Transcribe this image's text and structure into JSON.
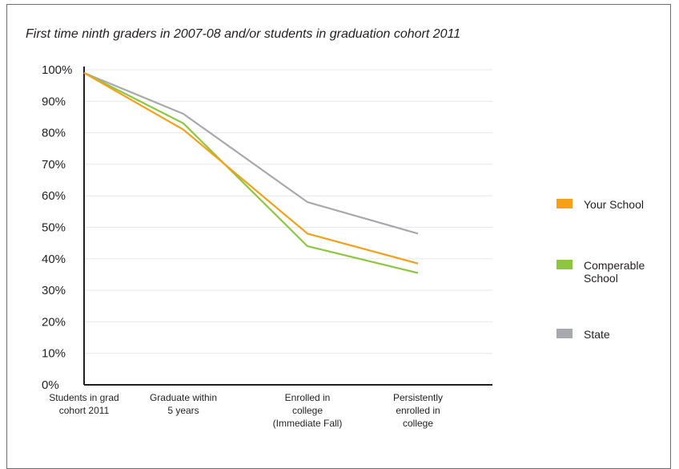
{
  "chart_data": {
    "type": "line",
    "title": "First time ninth graders in 2007-08 and/or students in graduation cohort 2011",
    "xlabel": "",
    "ylabel": "",
    "ylim": [
      0,
      100
    ],
    "yticks": [
      "0%",
      "10%",
      "20%",
      "30%",
      "40%",
      "50%",
      "60%",
      "70%",
      "80%",
      "90%",
      "100%"
    ],
    "categories": [
      [
        "Students in grad",
        "cohort 2011"
      ],
      [
        "Graduate within",
        "5 years"
      ],
      [
        "Enrolled in",
        "college",
        "(Immediate Fall)"
      ],
      [
        "Persistently",
        "enrolled in",
        "college"
      ]
    ],
    "grid": true,
    "legend_position": "right",
    "series": [
      {
        "name": [
          "Your School"
        ],
        "color": "#f6a01a",
        "values": [
          99,
          81,
          48,
          38.5
        ]
      },
      {
        "name": [
          "Comperable",
          "School"
        ],
        "color": "#8dc63f",
        "values": [
          99,
          83,
          44,
          35.5
        ]
      },
      {
        "name": [
          "State"
        ],
        "color": "#a7a9ac",
        "values": [
          99,
          86,
          58,
          48
        ]
      }
    ]
  }
}
